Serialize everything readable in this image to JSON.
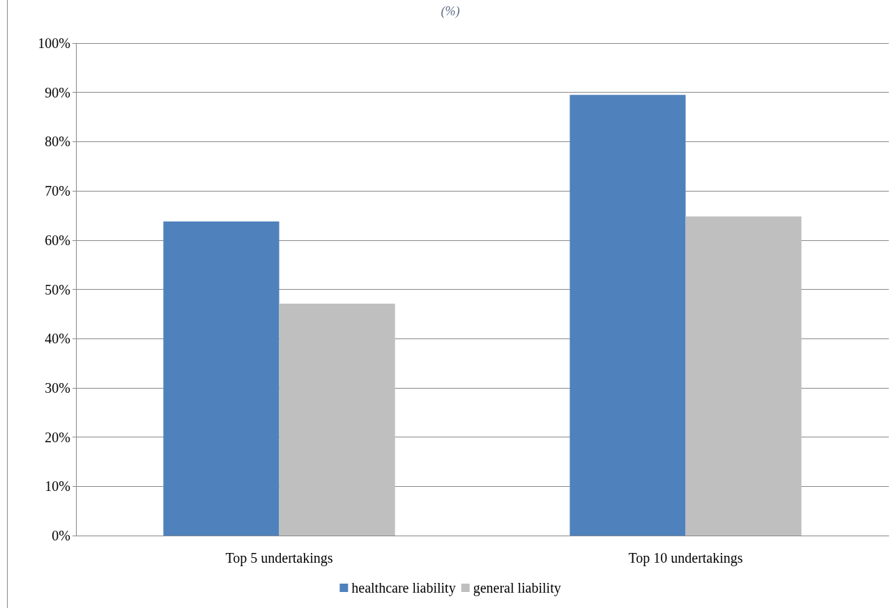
{
  "chart_data": {
    "type": "bar",
    "subtitle": "(%)",
    "categories": [
      "Top 5 undertakings",
      "Top 10 undertakings"
    ],
    "series": [
      {
        "name": "healthcare liability",
        "color": "#4f81bd",
        "values": [
          63.8,
          89.5
        ]
      },
      {
        "name": "general liability",
        "color": "#bfbfbf",
        "values": [
          47.1,
          64.8
        ]
      }
    ],
    "ylim": [
      0,
      100
    ],
    "yticks": [
      {
        "value": 0,
        "label": "0%"
      },
      {
        "value": 10,
        "label": "10%"
      },
      {
        "value": 20,
        "label": "20%"
      },
      {
        "value": 30,
        "label": "30%"
      },
      {
        "value": 40,
        "label": "40%"
      },
      {
        "value": 50,
        "label": "50%"
      },
      {
        "value": 60,
        "label": "60%"
      },
      {
        "value": 70,
        "label": "70%"
      },
      {
        "value": 80,
        "label": "80%"
      },
      {
        "value": 90,
        "label": "90%"
      },
      {
        "value": 100,
        "label": "100%"
      }
    ],
    "grid": "y",
    "legend": "bottom"
  }
}
